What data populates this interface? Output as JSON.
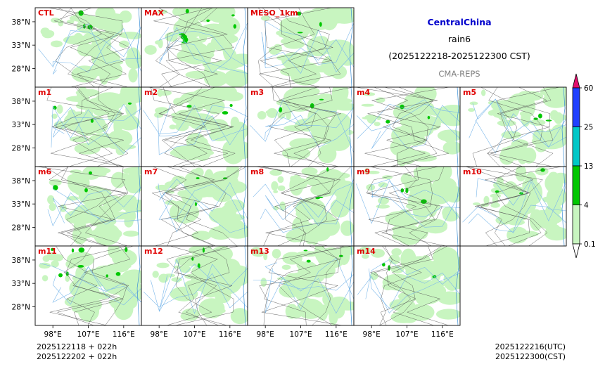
{
  "chart_data": {
    "type": "panel-map-grid",
    "region": "CentralChina",
    "variable": "rain6",
    "period": "(2025122218-2025122300 CST)",
    "source": "CMA-REPS",
    "panels": [
      "CTL",
      "MAX",
      "MESO_1km",
      "m1",
      "m2",
      "m3",
      "m4",
      "m5",
      "m6",
      "m7",
      "m8",
      "m9",
      "m10",
      "m11",
      "m12",
      "m13",
      "m14"
    ],
    "lat_ticks": [
      "38°N",
      "33°N",
      "28°N"
    ],
    "lon_ticks": [
      "98°E",
      "107°E",
      "116°E"
    ],
    "colorbar": {
      "levels": [
        0.1,
        4,
        13,
        25,
        60
      ],
      "labels": [
        "0.1",
        "4",
        "13",
        "25",
        "60"
      ],
      "colors": [
        "#c8f5c0",
        "#00c800",
        "#00c8c8",
        "#2040ff",
        "#e0106e"
      ]
    },
    "init_info": [
      "2025122118  +  022h",
      "2025122202  +  022h"
    ],
    "valid_info": [
      "2025122216(UTC)",
      "2025122300(CST)"
    ]
  }
}
